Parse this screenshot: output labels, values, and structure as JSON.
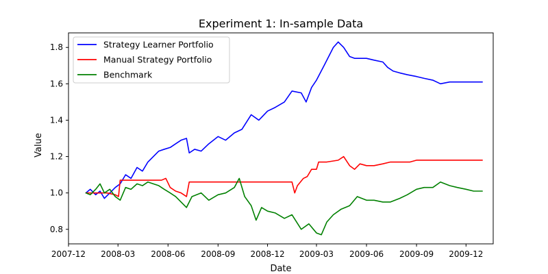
{
  "chart_data": {
    "type": "line",
    "title": "Experiment 1: In-sample Data",
    "xlabel": "Date",
    "ylabel": "Value",
    "xlim": [
      "2007-12-01",
      "2010-01-20"
    ],
    "ylim": [
      0.72,
      1.88
    ],
    "grid": false,
    "legend_position": "top-left",
    "x_ticks": [
      "2007-12",
      "2008-03",
      "2008-06",
      "2008-09",
      "2008-12",
      "2009-03",
      "2009-06",
      "2009-09",
      "2009-12"
    ],
    "y_ticks": [
      "0.8",
      "1.0",
      "1.2",
      "1.4",
      "1.6",
      "1.8"
    ],
    "series": [
      {
        "name": "Strategy Learner Portfolio",
        "color": "#0000ff",
        "x": [
          "2008-01-02",
          "2008-01-10",
          "2008-01-20",
          "2008-01-28",
          "2008-02-05",
          "2008-02-15",
          "2008-02-25",
          "2008-03-05",
          "2008-03-15",
          "2008-03-25",
          "2008-04-05",
          "2008-04-15",
          "2008-04-25",
          "2008-05-05",
          "2008-05-15",
          "2008-05-25",
          "2008-06-05",
          "2008-06-15",
          "2008-06-25",
          "2008-07-05",
          "2008-07-10",
          "2008-07-20",
          "2008-08-01",
          "2008-08-15",
          "2008-09-01",
          "2008-09-15",
          "2008-10-01",
          "2008-10-15",
          "2008-11-01",
          "2008-11-15",
          "2008-12-01",
          "2008-12-15",
          "2009-01-01",
          "2009-01-15",
          "2009-02-01",
          "2009-02-10",
          "2009-02-20",
          "2009-03-01",
          "2009-03-15",
          "2009-04-01",
          "2009-04-10",
          "2009-04-20",
          "2009-05-01",
          "2009-05-10",
          "2009-05-20",
          "2009-06-01",
          "2009-06-15",
          "2009-07-01",
          "2009-07-10",
          "2009-07-20",
          "2009-08-01",
          "2009-08-15",
          "2009-09-01",
          "2009-09-15",
          "2009-10-01",
          "2009-10-15",
          "2009-11-01",
          "2009-11-15",
          "2009-12-01",
          "2009-12-15",
          "2009-12-31"
        ],
        "values": [
          1.0,
          1.02,
          0.99,
          1.01,
          0.97,
          1.0,
          1.03,
          1.05,
          1.1,
          1.08,
          1.14,
          1.12,
          1.17,
          1.2,
          1.23,
          1.24,
          1.25,
          1.27,
          1.29,
          1.3,
          1.22,
          1.24,
          1.23,
          1.27,
          1.31,
          1.29,
          1.33,
          1.35,
          1.43,
          1.4,
          1.45,
          1.47,
          1.5,
          1.56,
          1.55,
          1.5,
          1.58,
          1.62,
          1.7,
          1.8,
          1.83,
          1.8,
          1.75,
          1.74,
          1.74,
          1.74,
          1.73,
          1.72,
          1.69,
          1.67,
          1.66,
          1.65,
          1.64,
          1.63,
          1.62,
          1.6,
          1.61,
          1.61,
          1.61,
          1.61,
          1.61
        ]
      },
      {
        "name": "Manual Strategy Portfolio",
        "color": "#ff0000",
        "x": [
          "2008-01-02",
          "2008-01-20",
          "2008-02-10",
          "2008-02-25",
          "2008-03-02",
          "2008-03-05",
          "2008-03-12",
          "2008-04-05",
          "2008-05-01",
          "2008-05-20",
          "2008-05-28",
          "2008-06-05",
          "2008-06-15",
          "2008-06-25",
          "2008-07-05",
          "2008-07-10",
          "2008-08-01",
          "2008-09-01",
          "2008-10-01",
          "2008-11-01",
          "2008-12-01",
          "2009-01-01",
          "2009-01-15",
          "2009-01-20",
          "2009-01-25",
          "2009-02-05",
          "2009-02-12",
          "2009-02-20",
          "2009-03-01",
          "2009-03-05",
          "2009-03-20",
          "2009-04-10",
          "2009-04-20",
          "2009-05-01",
          "2009-05-10",
          "2009-05-20",
          "2009-06-01",
          "2009-06-15",
          "2009-07-01",
          "2009-07-15",
          "2009-08-01",
          "2009-08-20",
          "2009-09-01",
          "2009-10-01",
          "2009-11-01",
          "2009-12-01",
          "2009-12-31"
        ],
        "values": [
          1.0,
          1.0,
          1.0,
          0.99,
          0.98,
          1.07,
          1.07,
          1.07,
          1.07,
          1.07,
          1.08,
          1.03,
          1.01,
          1.0,
          0.98,
          1.06,
          1.06,
          1.06,
          1.06,
          1.06,
          1.06,
          1.06,
          1.06,
          1.0,
          1.04,
          1.08,
          1.09,
          1.13,
          1.13,
          1.17,
          1.17,
          1.18,
          1.2,
          1.15,
          1.13,
          1.16,
          1.15,
          1.15,
          1.16,
          1.17,
          1.17,
          1.17,
          1.18,
          1.18,
          1.18,
          1.18,
          1.18
        ]
      },
      {
        "name": "Benchmark",
        "color": "#008000",
        "x": [
          "2008-01-02",
          "2008-01-10",
          "2008-01-20",
          "2008-01-28",
          "2008-02-05",
          "2008-02-15",
          "2008-02-25",
          "2008-03-05",
          "2008-03-15",
          "2008-03-25",
          "2008-04-05",
          "2008-04-15",
          "2008-04-25",
          "2008-05-05",
          "2008-05-15",
          "2008-05-25",
          "2008-06-05",
          "2008-06-15",
          "2008-06-25",
          "2008-07-05",
          "2008-07-15",
          "2008-08-01",
          "2008-08-15",
          "2008-09-01",
          "2008-09-15",
          "2008-10-01",
          "2008-10-10",
          "2008-10-20",
          "2008-11-01",
          "2008-11-10",
          "2008-11-20",
          "2008-12-01",
          "2008-12-15",
          "2009-01-01",
          "2009-01-15",
          "2009-02-01",
          "2009-02-15",
          "2009-03-01",
          "2009-03-10",
          "2009-03-20",
          "2009-04-01",
          "2009-04-15",
          "2009-05-01",
          "2009-05-15",
          "2009-06-01",
          "2009-06-15",
          "2009-07-01",
          "2009-07-15",
          "2009-08-01",
          "2009-08-15",
          "2009-09-01",
          "2009-09-15",
          "2009-10-01",
          "2009-10-15",
          "2009-11-01",
          "2009-11-15",
          "2009-12-01",
          "2009-12-15",
          "2009-12-31"
        ],
        "values": [
          1.0,
          0.99,
          1.02,
          1.05,
          1.0,
          1.02,
          0.98,
          0.96,
          1.03,
          1.02,
          1.05,
          1.04,
          1.06,
          1.05,
          1.04,
          1.02,
          1.0,
          0.98,
          0.95,
          0.92,
          0.98,
          1.0,
          0.96,
          0.99,
          1.0,
          1.03,
          1.08,
          0.98,
          0.93,
          0.85,
          0.92,
          0.9,
          0.89,
          0.86,
          0.88,
          0.8,
          0.83,
          0.78,
          0.77,
          0.84,
          0.88,
          0.91,
          0.93,
          0.98,
          0.96,
          0.96,
          0.95,
          0.95,
          0.97,
          0.99,
          1.02,
          1.03,
          1.03,
          1.06,
          1.04,
          1.03,
          1.02,
          1.01,
          1.01
        ]
      }
    ]
  }
}
